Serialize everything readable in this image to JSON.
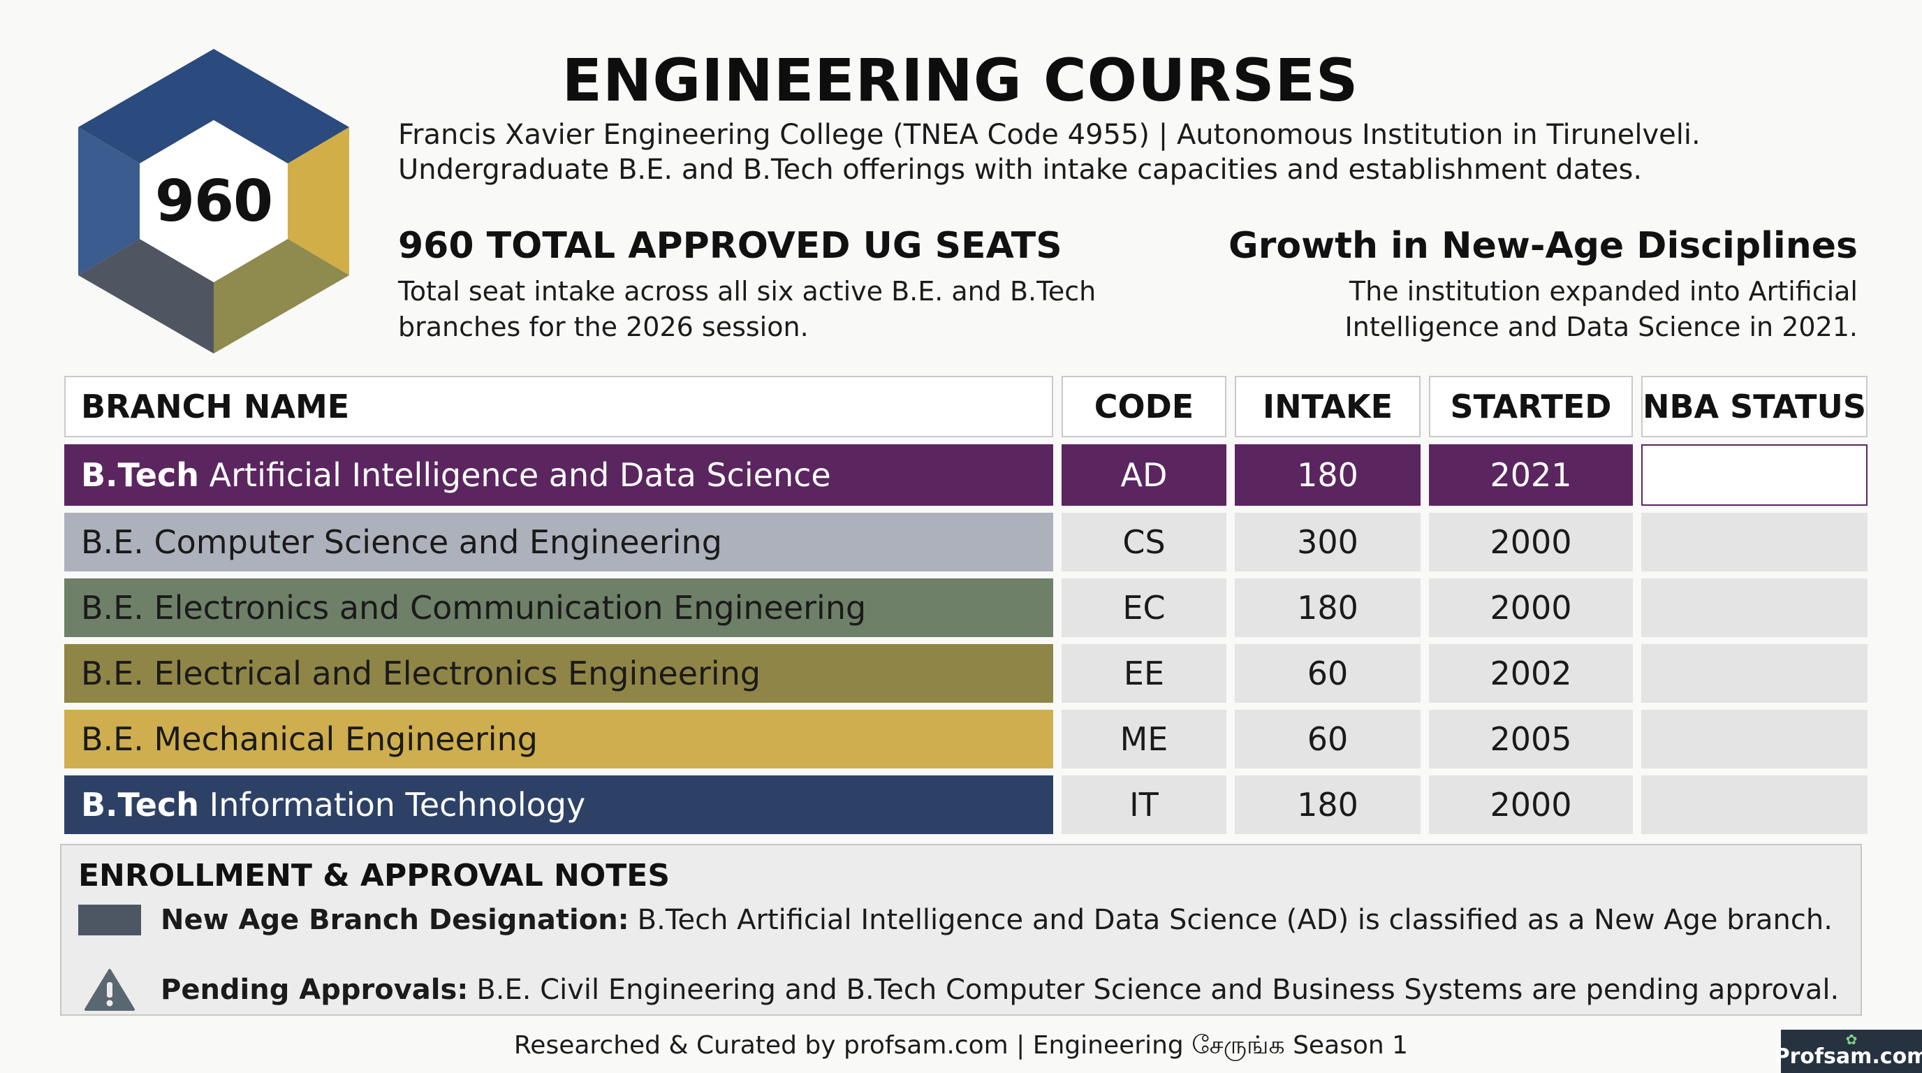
{
  "logo": {
    "number": "960",
    "colors": [
      "#2b4a7d",
      "#d1ae48",
      "#8f8a4d",
      "#4f5661"
    ]
  },
  "header": {
    "title": "ENGINEERING COURSES",
    "subtitle_line1": "Francis Xavier Engineering College (TNEA Code 4955) | Autonomous Institution in Tirunelveli.",
    "subtitle_line2": "Undergraduate B.E. and B.Tech offerings with intake capacities and establishment dates."
  },
  "stats": {
    "left": {
      "heading": "960 TOTAL APPROVED UG SEATS",
      "line1": "Total seat intake across all six active B.E. and B.Tech",
      "line2": "branches for the 2026 session."
    },
    "right": {
      "heading": "Growth in New-Age Disciplines",
      "line1": "The institution expanded into Artificial",
      "line2": "Intelligence and Data Science in 2021."
    }
  },
  "table": {
    "headers": {
      "branch": "BRANCH NAME",
      "code": "CODE",
      "intake": "INTAKE",
      "started": "STARTED",
      "nba": "NBA STATUS"
    },
    "rows": [
      {
        "degree": "B.Tech",
        "name": "Artificial Intelligence and Data Science",
        "code": "AD",
        "intake": "180",
        "started": "2021",
        "nba": "",
        "color": "#5b2560"
      },
      {
        "degree": "B.E.",
        "name": "Computer Science and Engineering",
        "code": "CS",
        "intake": "300",
        "started": "2000",
        "nba": "",
        "color": "#adb1bb"
      },
      {
        "degree": "B.E.",
        "name": "Electronics and Communication Engineering",
        "code": "EC",
        "intake": "180",
        "started": "2000",
        "nba": "",
        "color": "#6f8068"
      },
      {
        "degree": "B.E.",
        "name": "Electrical and Electronics Engineering",
        "code": "EE",
        "intake": "60",
        "started": "2002",
        "nba": "",
        "color": "#8f8546"
      },
      {
        "degree": "B.E.",
        "name": "Mechanical Engineering",
        "code": "ME",
        "intake": "60",
        "started": "2005",
        "nba": "",
        "color": "#ceae4e"
      },
      {
        "degree": "B.Tech",
        "name": "Information Technology",
        "code": "IT",
        "intake": "180",
        "started": "2000",
        "nba": "",
        "color": "#2d4166"
      }
    ]
  },
  "notes": {
    "title": "ENROLLMENT & APPROVAL NOTES",
    "items": [
      {
        "label": "New Age Branch Designation:",
        "text": "B.Tech Artificial Intelligence and Data Science (AD) is classified as a New Age branch.",
        "icon": "swatch-icon"
      },
      {
        "label": "Pending Approvals:",
        "text": "B.E. Civil Engineering and B.Tech Computer Science and Business Systems are pending approval.",
        "icon": "warning-icon"
      }
    ]
  },
  "footer": {
    "text": "Researched & Curated by profsam.com | Engineering சேருங்க Season 1",
    "badge": "Profsam.com"
  }
}
